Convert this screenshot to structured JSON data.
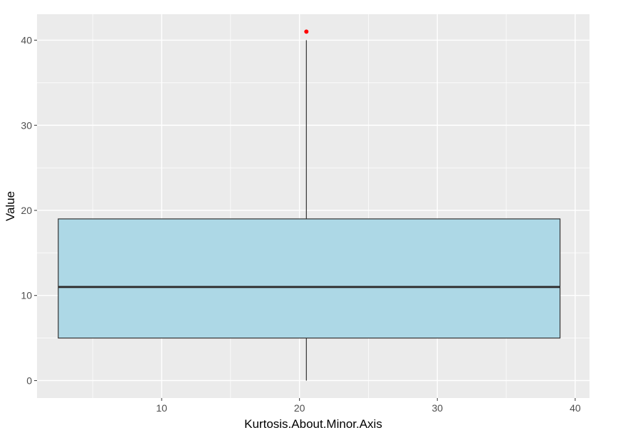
{
  "chart_data": {
    "type": "boxplot",
    "title": "",
    "xlabel": "Kurtosis.About.Minor.Axis",
    "ylabel": "Value",
    "xlim": [
      0.96,
      41.04
    ],
    "ylim": [
      -2.05,
      43.05
    ],
    "x_ticks": [
      10,
      20,
      30,
      40
    ],
    "y_ticks": [
      0,
      10,
      20,
      30,
      40
    ],
    "grid": true,
    "box": {
      "x_center": 20.5,
      "x_from": 2.5,
      "x_to": 38.9,
      "min": 0,
      "q1": 5,
      "median": 11,
      "q3": 19,
      "max": 40,
      "fill_color": "#add8e6",
      "outline_color": "#333333"
    },
    "outliers": [
      {
        "x": 20.5,
        "y": 41,
        "color": "#ff0000"
      }
    ],
    "panel_color": "#ebebeb",
    "grid_color": "#ffffff"
  }
}
